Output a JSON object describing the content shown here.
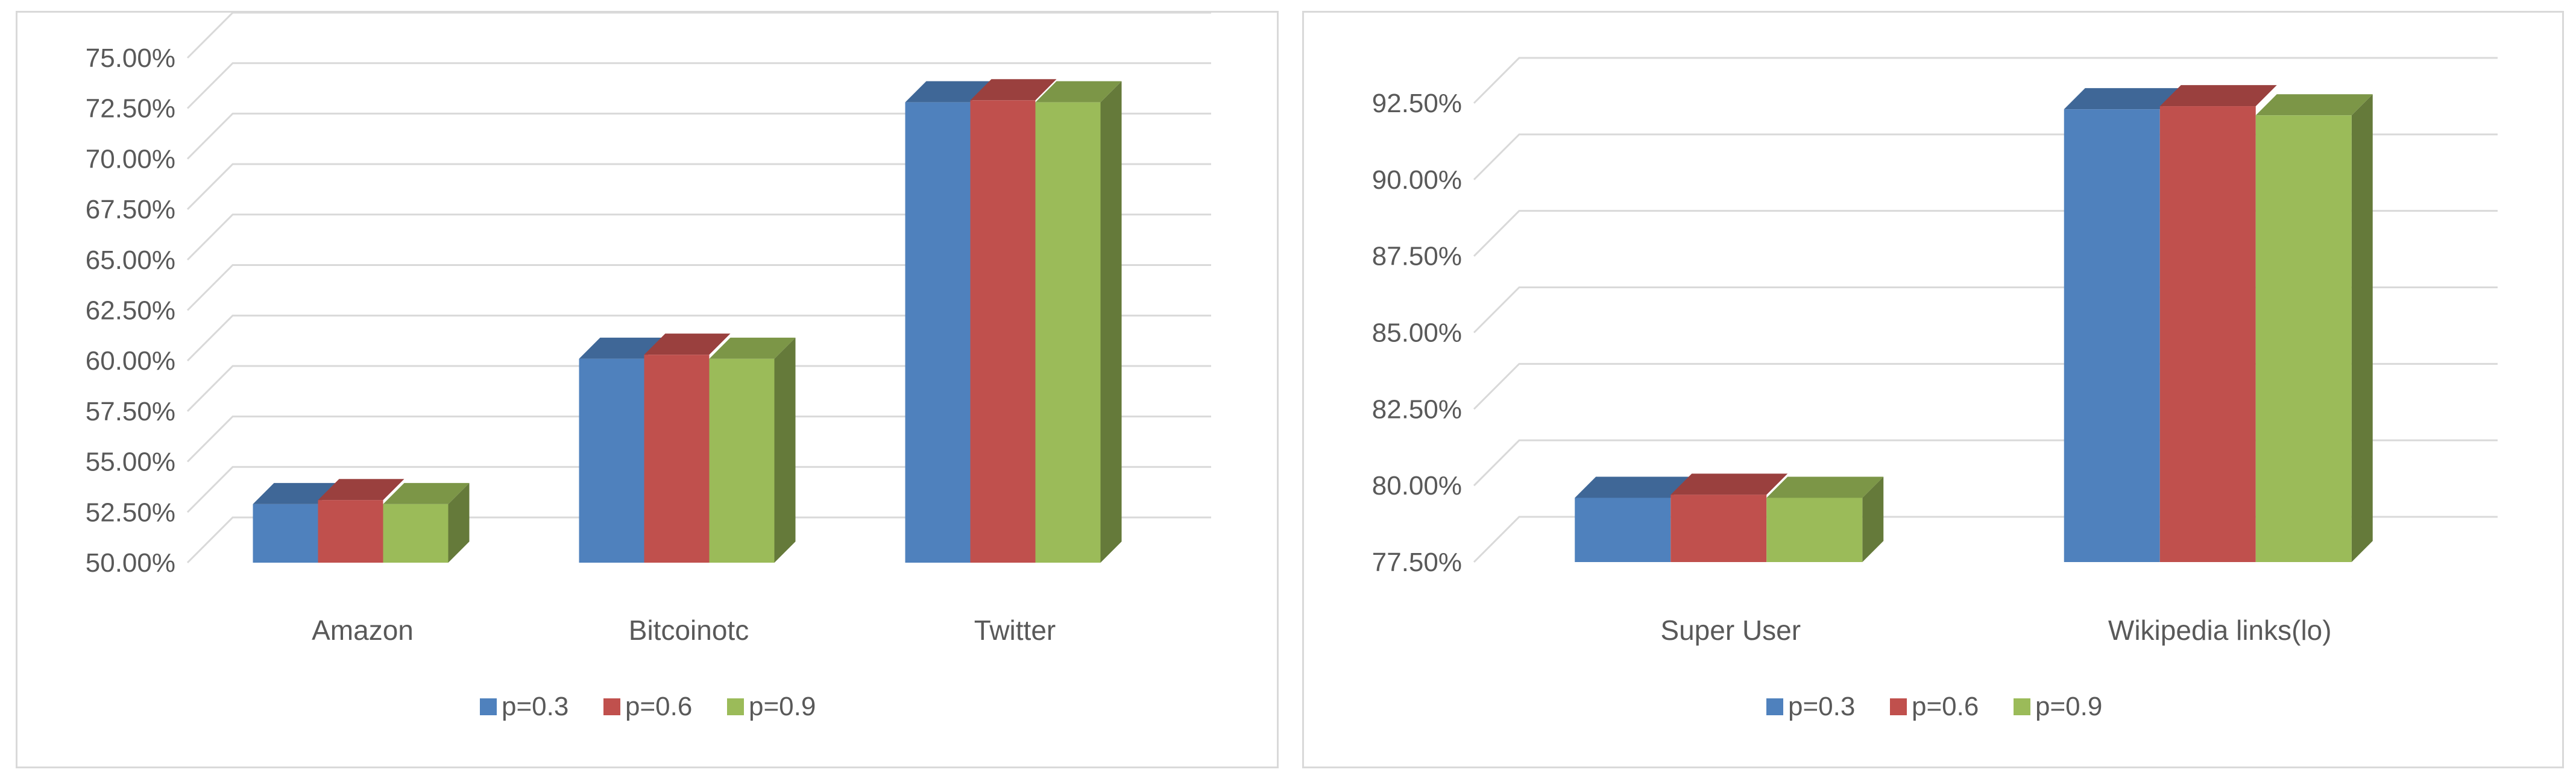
{
  "chart_data": [
    {
      "type": "bar",
      "categories": [
        "Amazon",
        "Bitcoinotc",
        "Twitter"
      ],
      "series": [
        {
          "name": "p=0.3",
          "values": [
            52.9,
            60.1,
            72.8
          ],
          "color": "#4F81BD"
        },
        {
          "name": "p=0.6",
          "values": [
            53.1,
            60.3,
            72.9
          ],
          "color": "#C0504D"
        },
        {
          "name": "p=0.9",
          "values": [
            52.9,
            60.1,
            72.8
          ],
          "color": "#9BBB59"
        }
      ],
      "ylim": [
        50,
        75
      ],
      "yticks": [
        "50.00%",
        "52.50%",
        "55.00%",
        "57.50%",
        "60.00%",
        "62.50%",
        "65.00%",
        "67.50%",
        "70.00%",
        "72.50%",
        "75.00%"
      ],
      "grid": true,
      "legend": "bottom",
      "style": "3d-clustered-column"
    },
    {
      "type": "bar",
      "categories": [
        "Super User",
        "Wikipedia links(lo)"
      ],
      "series": [
        {
          "name": "p=0.3",
          "values": [
            79.6,
            92.3
          ],
          "color": "#4F81BD"
        },
        {
          "name": "p=0.6",
          "values": [
            79.7,
            92.4
          ],
          "color": "#C0504D"
        },
        {
          "name": "p=0.9",
          "values": [
            79.6,
            92.1
          ],
          "color": "#9BBB59"
        }
      ],
      "ylim": [
        77.5,
        92.5
      ],
      "yticks": [
        "77.50%",
        "80.00%",
        "82.50%",
        "85.00%",
        "87.50%",
        "90.00%",
        "92.50%"
      ],
      "grid": true,
      "legend": "bottom",
      "style": "3d-clustered-column"
    }
  ]
}
